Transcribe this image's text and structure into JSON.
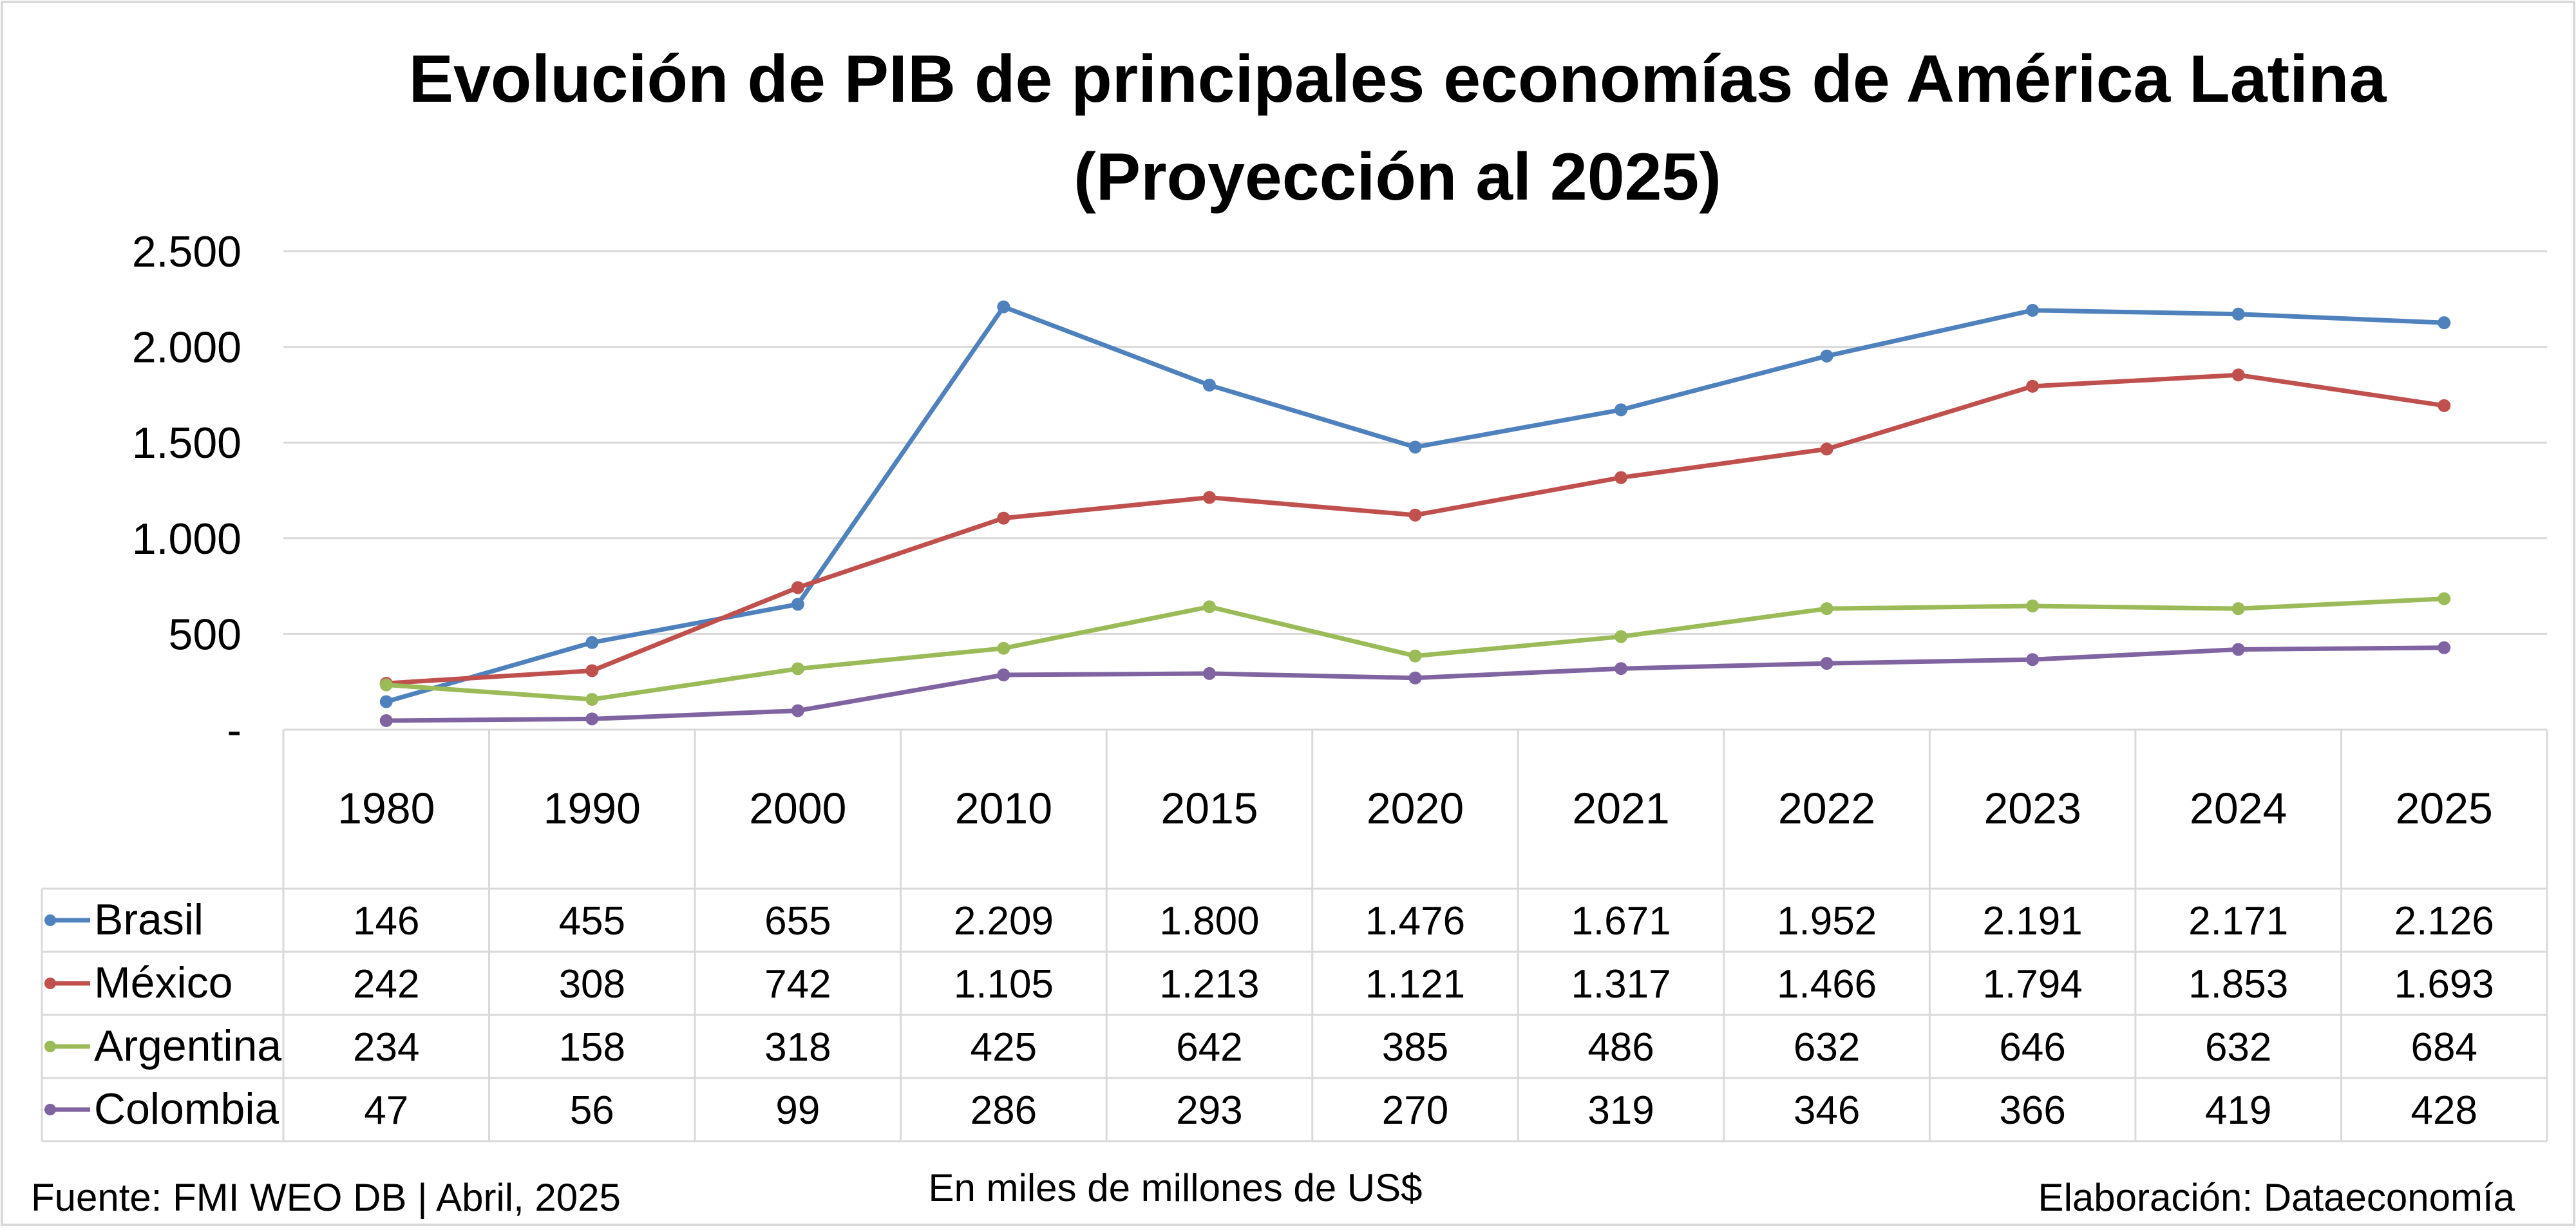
{
  "chart_data": {
    "type": "line",
    "title_line1": "Evolución de PIB de principales economías de América Latina",
    "title_line2": "(Proyección al 2025)",
    "categories": [
      "1980",
      "1990",
      "2000",
      "2010",
      "2015",
      "2020",
      "2021",
      "2022",
      "2023",
      "2024",
      "2025"
    ],
    "ylim": [
      0,
      2500
    ],
    "y_ticks": [
      {
        "value": 0,
        "label": "-"
      },
      {
        "value": 500,
        "label": "500"
      },
      {
        "value": 1000,
        "label": "1.000"
      },
      {
        "value": 1500,
        "label": "1.500"
      },
      {
        "value": 2000,
        "label": "2.000"
      },
      {
        "value": 2500,
        "label": "2.500"
      }
    ],
    "grid": true,
    "legend": "data-table",
    "series": [
      {
        "name": "Brasil",
        "color": "#4F81BD",
        "values": [
          146,
          455,
          655,
          2209,
          1800,
          1476,
          1671,
          1952,
          2191,
          2171,
          2126
        ],
        "labels": [
          "146",
          "455",
          "655",
          "2.209",
          "1.800",
          "1.476",
          "1.671",
          "1.952",
          "2.191",
          "2.171",
          "2.126"
        ]
      },
      {
        "name": "México",
        "color": "#C0504D",
        "values": [
          242,
          308,
          742,
          1105,
          1213,
          1121,
          1317,
          1466,
          1794,
          1853,
          1693
        ],
        "labels": [
          "242",
          "308",
          "742",
          "1.105",
          "1.213",
          "1.121",
          "1.317",
          "1.466",
          "1.794",
          "1.853",
          "1.693"
        ]
      },
      {
        "name": "Argentina",
        "color": "#9BBB59",
        "values": [
          234,
          158,
          318,
          425,
          642,
          385,
          486,
          632,
          646,
          632,
          684
        ],
        "labels": [
          "234",
          "158",
          "318",
          "425",
          "642",
          "385",
          "486",
          "632",
          "646",
          "632",
          "684"
        ]
      },
      {
        "name": "Colombia",
        "color": "#8064A2",
        "values": [
          47,
          56,
          99,
          286,
          293,
          270,
          319,
          346,
          366,
          419,
          428
        ],
        "labels": [
          "47",
          "56",
          "99",
          "286",
          "293",
          "270",
          "319",
          "346",
          "366",
          "419",
          "428"
        ]
      }
    ]
  },
  "footer": {
    "source": "Fuente: FMI WEO DB | Abril, 2025",
    "units": "En miles de millones de US$",
    "credit": "Elaboración: Dataeconomía"
  }
}
